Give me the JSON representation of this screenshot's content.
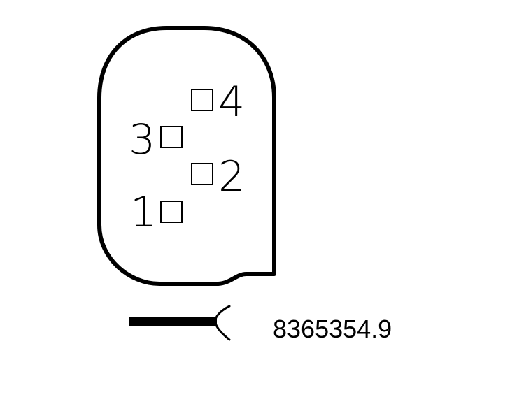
{
  "connector": {
    "pins": [
      {
        "label": "1"
      },
      {
        "label": "2"
      },
      {
        "label": "3"
      },
      {
        "label": "4"
      }
    ]
  },
  "reference": {
    "code": "8365354.9"
  },
  "colors": {
    "line": "#000000",
    "background": "#ffffff"
  },
  "icons": {
    "wire": "connector-wire-icon"
  }
}
